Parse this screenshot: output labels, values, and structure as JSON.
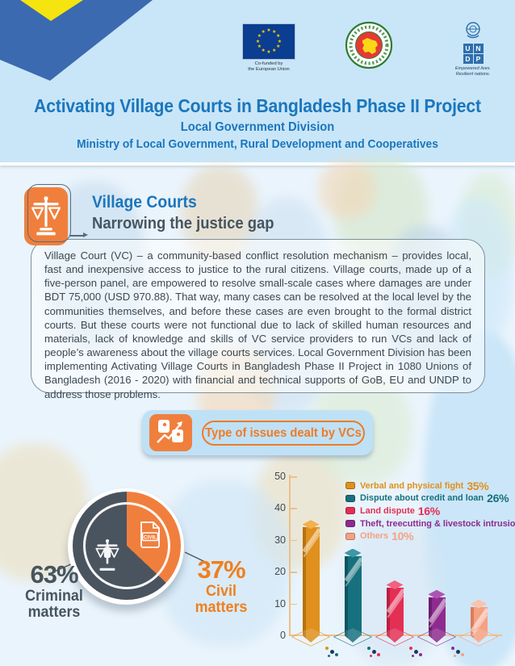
{
  "header": {
    "eu": {
      "caption_line1": "Co-funded by",
      "caption_line2": "the European Union"
    },
    "undp": {
      "letters": [
        "U",
        "N",
        "D",
        "P"
      ],
      "tagline_line1": "Empowered lives.",
      "tagline_line2": "Resilient nations."
    },
    "title": "Activating Village Courts in Bangladesh Phase II Project",
    "subtitle1": "Local Government Division",
    "subtitle2": "Ministry of Local Government, Rural Development and Cooperatives"
  },
  "section": {
    "heading": "Village Courts",
    "subheading": "Narrowing the justice gap",
    "paragraph": "Village Court (VC) – a community-based conflict resolution mechanism – provides local, fast and inexpensive access to justice to the rural citizens. Village courts, made up of a five-person panel, are empowered to resolve small-scale cases where damages are under BDT 75,000 (USD 970.88). That way, many cases can be resolved at the local level by the communities themselves, and before these cases are even brought to the formal district courts. But these courts were not functional due to lack of skilled human resources and materials, lack of knowledge and skills of VC service providers to run VCs and lack of people’s awareness about the village courts services. Local Government Division has been implementing Activating Village Courts in Bangladesh Phase II Project in 1080 Unions of Bangladesh (2016 - 2020) with financial and technical supports of GoB, EU and UNDP to address those problems."
  },
  "donut": {
    "civil_doc_label": "CIVIL"
  },
  "colors": {
    "accent_orange": "#f07f3d",
    "title_blue": "#1b76bd",
    "heading_dark": "#46555f",
    "header_bg": "#c9e6f8",
    "body_bg": "#eaf4fc",
    "axis_tan": "#ecc089",
    "banner_bg": "#bfe1f6"
  },
  "chart_data": [
    {
      "type": "pie",
      "note": "donut: share of matters dealt by Village Courts",
      "slices": [
        {
          "label": "Criminal matters",
          "pct": 63,
          "color": "#4a545f"
        },
        {
          "label": "Civil matters",
          "pct": 37,
          "color": "#f07f3d"
        }
      ]
    },
    {
      "type": "bar",
      "title": "Type of issues dealt by VCs",
      "ylim": [
        0,
        50
      ],
      "yticks": [
        0,
        10,
        20,
        30,
        40,
        50
      ],
      "legend_position": "top-right",
      "grid": false,
      "series": [
        {
          "label": "Verbal and physical fight",
          "pct": 35,
          "color": "#e0901c",
          "dark": "#b9720d",
          "light": "#f2b14e"
        },
        {
          "label": "Dispute about credit and loan",
          "pct": 26,
          "color": "#17707e",
          "dark": "#0d5560",
          "light": "#3f98a4"
        },
        {
          "label": "Land dispute",
          "pct": 16,
          "color": "#e42f55",
          "dark": "#bb1f41",
          "light": "#ee6383"
        },
        {
          "label": "Theft, treecutting & livestock intrusion",
          "pct": 13,
          "color": "#8e2b8e",
          "dark": "#6e1c70",
          "light": "#ad54b0"
        },
        {
          "label": "Others",
          "pct": 10,
          "color": "#f5a183",
          "dark": "#dd7c5c",
          "light": "#f9c3ae"
        }
      ]
    }
  ]
}
